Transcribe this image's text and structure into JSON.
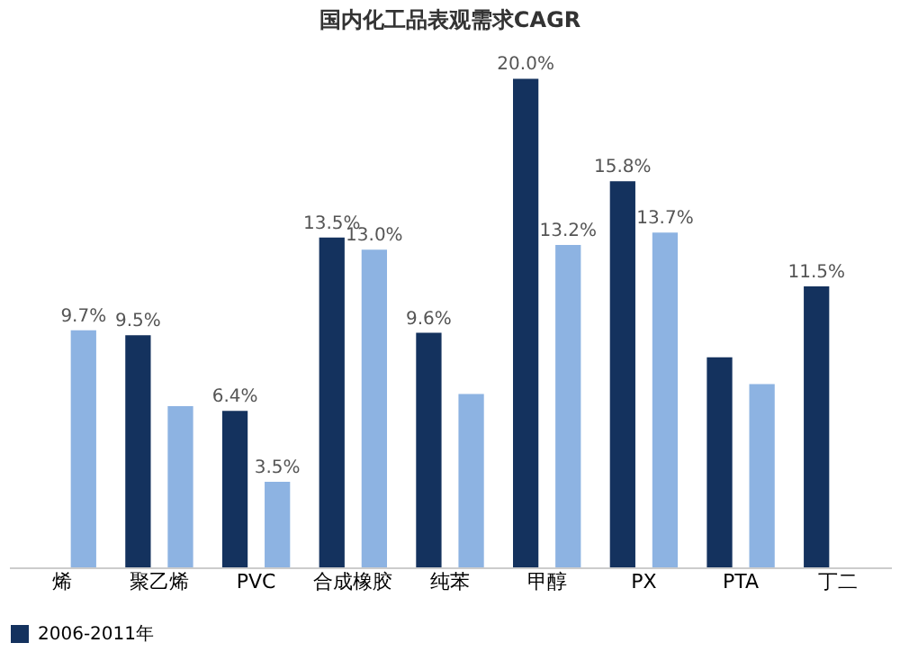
{
  "chart_data": {
    "type": "bar",
    "title": "国内化工品表观需求CAGR",
    "categories": [
      "烯",
      "聚乙烯",
      "PVC",
      "合成橡胶",
      "纯苯",
      "甲醇",
      "PX",
      "PTA",
      "丁二"
    ],
    "series": [
      {
        "name": "2006-2011年",
        "color": "#14325e",
        "values": [
          null,
          9.5,
          6.4,
          13.5,
          9.6,
          20.0,
          15.8,
          8.6,
          11.5
        ],
        "value_labels": [
          null,
          "9.5%",
          "6.4%",
          "13.5%",
          "9.6%",
          "20.0%",
          "15.8%",
          null,
          "11.5%"
        ]
      },
      {
        "color": "#8db3e2",
        "values": [
          9.7,
          6.6,
          3.5,
          13.0,
          7.1,
          13.2,
          13.7,
          7.5,
          null
        ],
        "value_labels": [
          "9.7%",
          null,
          "3.5%",
          "13.0%",
          null,
          "13.2%",
          "13.7%",
          null,
          null
        ]
      }
    ],
    "grid": false,
    "legend": "bottom"
  }
}
